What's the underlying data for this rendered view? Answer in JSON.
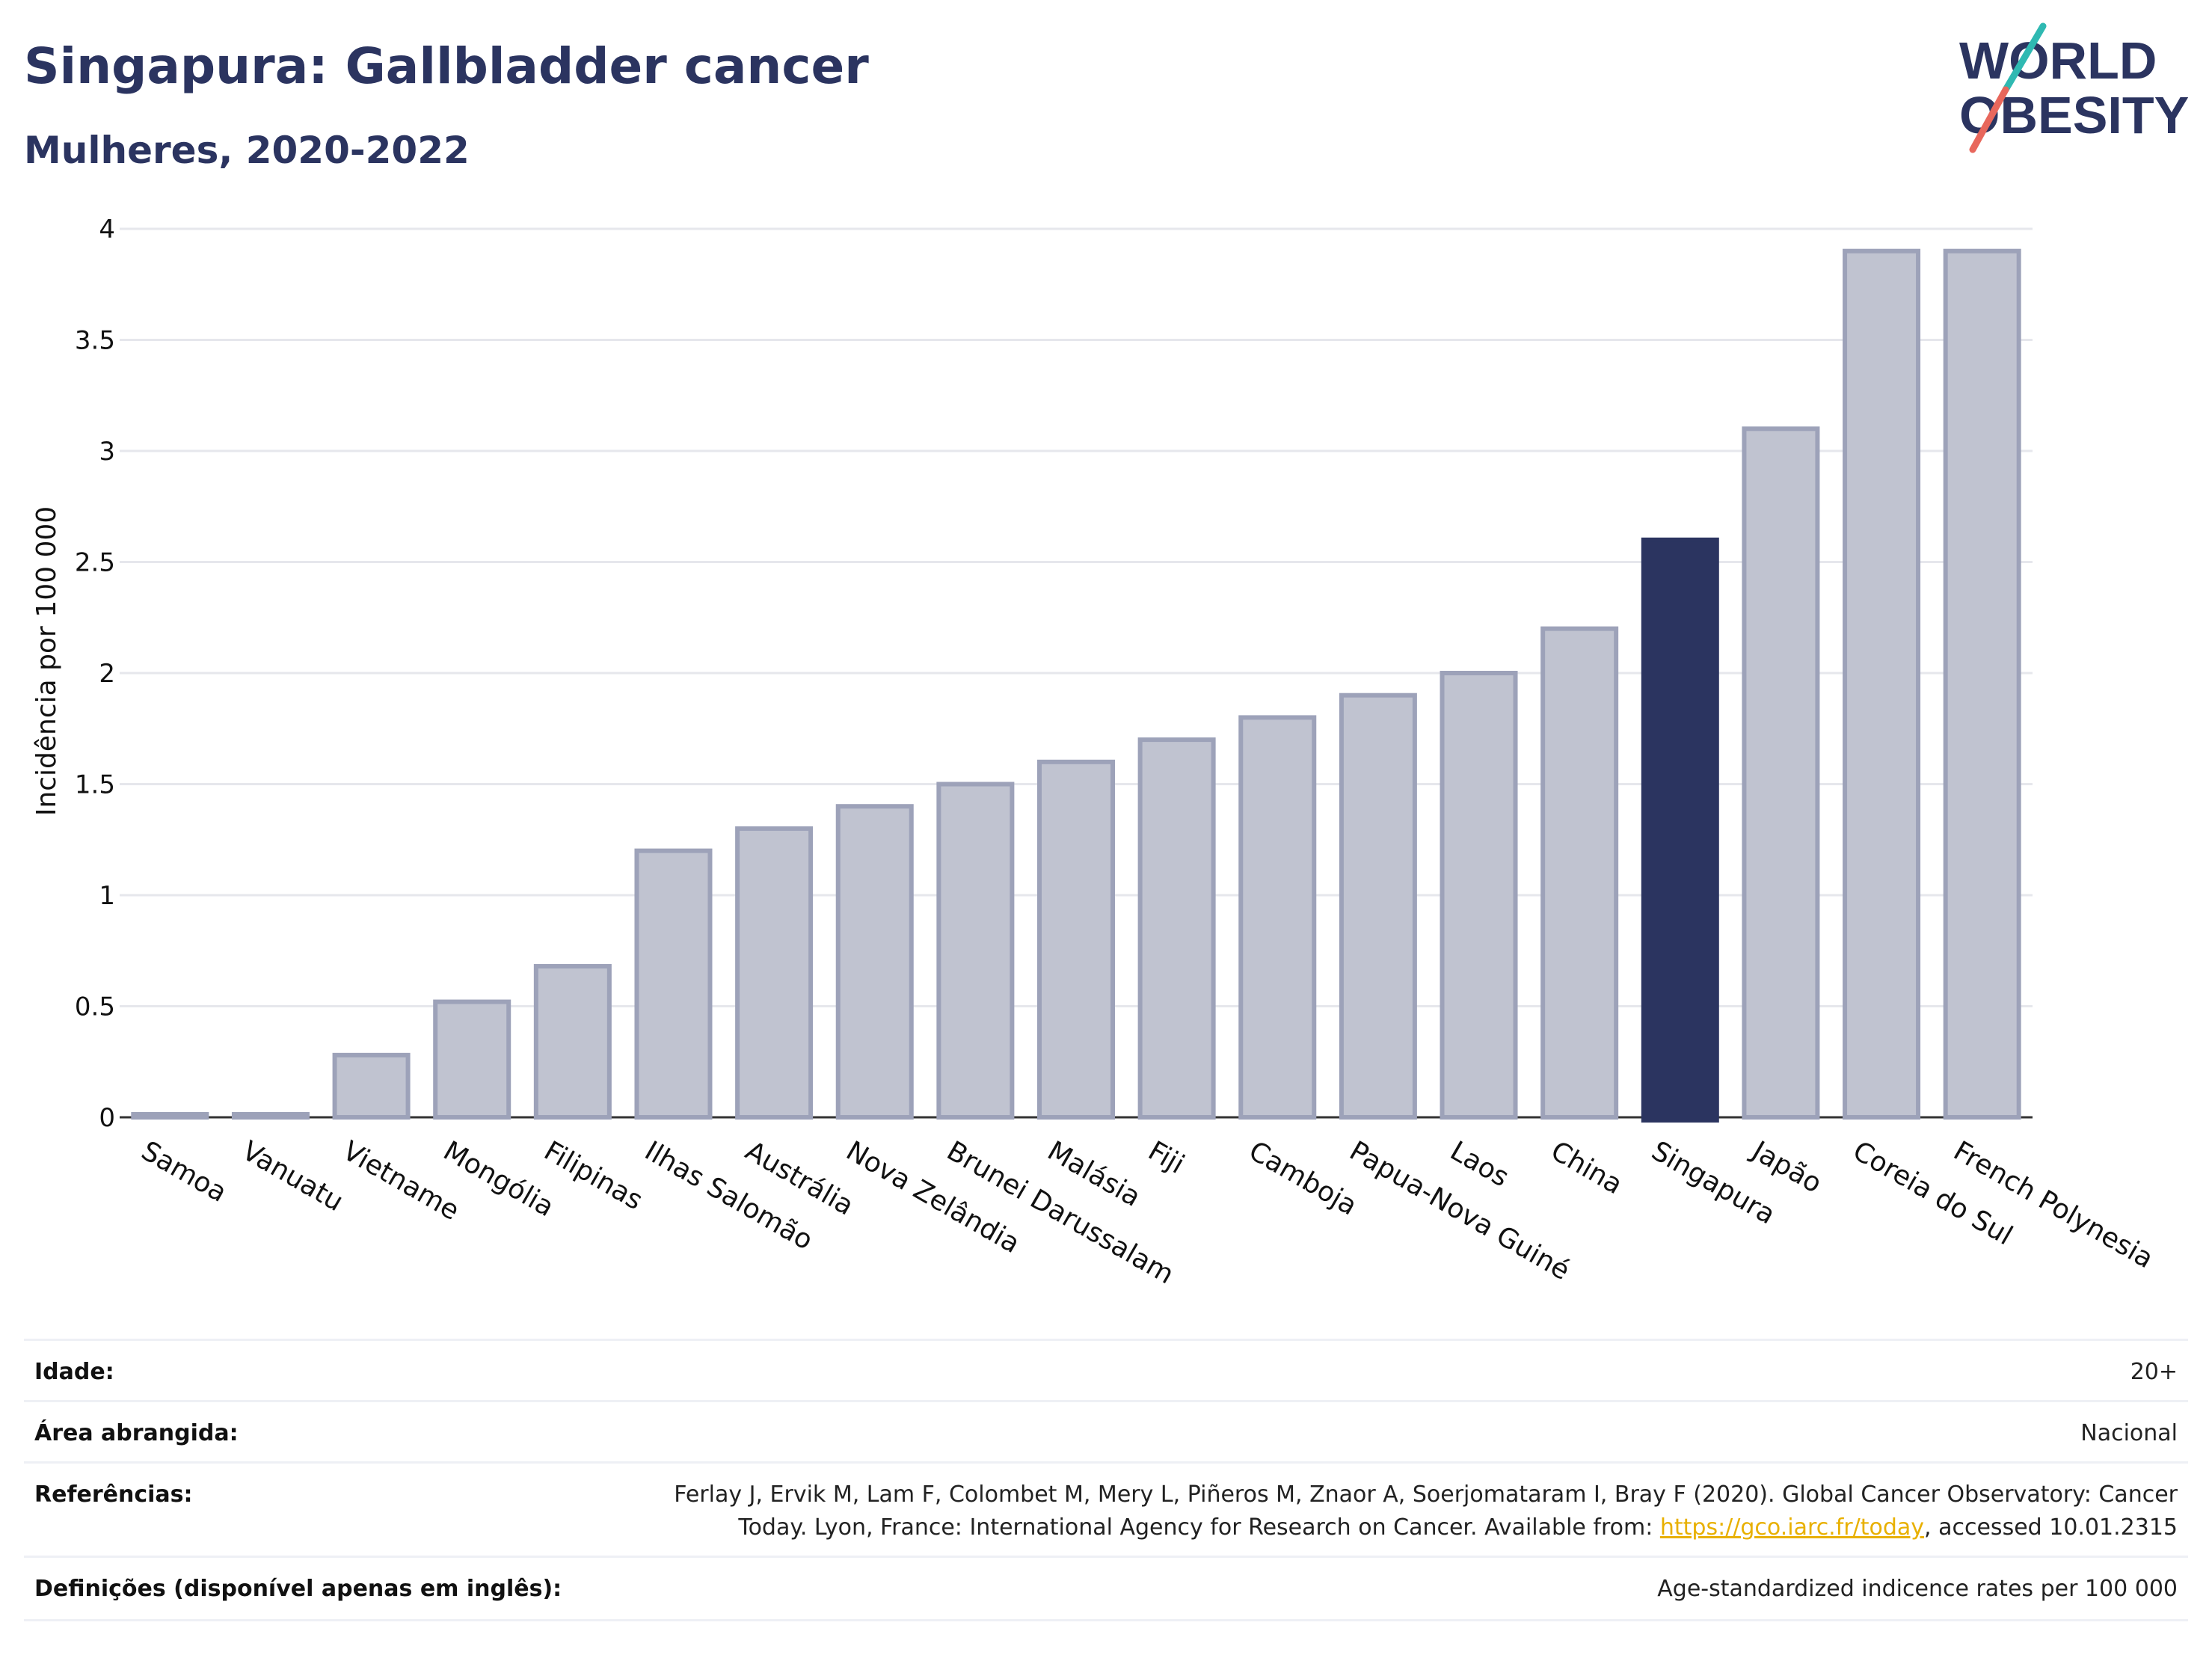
{
  "header": {
    "title": "Singapura: Gallbladder cancer",
    "subtitle": "Mulheres, 2020-2022"
  },
  "logo": {
    "line1": "WORLD",
    "line2": "OBESITY",
    "accent_colors": [
      "#2fb9b2",
      "#e8675c"
    ]
  },
  "colors": {
    "bar_default": "#c0c3d0",
    "bar_border": "#9da2b9",
    "bar_highlight": "#2b3460",
    "text": "#2b3460",
    "grid": "#e6e7ec"
  },
  "chart_data": {
    "type": "bar",
    "title": "Singapura: Gallbladder cancer",
    "subtitle": "Mulheres, 2020-2022",
    "xlabel": "",
    "ylabel": "Incidência por 100 000",
    "ylim": [
      0,
      4
    ],
    "yticks": [
      "0",
      "0.5",
      "1",
      "1.5",
      "2",
      "2.5",
      "3",
      "3.5",
      "4"
    ],
    "grid": true,
    "highlight": "Singapura",
    "categories": [
      "Samoa",
      "Vanuatu",
      "Vietname",
      "Mongólia",
      "Filipinas",
      "Ilhas Salomão",
      "Austrália",
      "Nova Zelândia",
      "Brunei Darussalam",
      "Malásia",
      "Fiji",
      "Camboja",
      "Papua-Nova Guiné",
      "Laos",
      "China",
      "Singapura",
      "Japão",
      "Coreia do Sul",
      "French Polynesia"
    ],
    "values": [
      0.01,
      0.01,
      0.28,
      0.52,
      0.68,
      1.2,
      1.3,
      1.4,
      1.5,
      1.6,
      1.7,
      1.8,
      1.9,
      2.0,
      2.2,
      2.6,
      3.1,
      3.9,
      3.9
    ]
  },
  "info": {
    "age_label": "Idade:",
    "age_value": "20+",
    "area_label": "Área abrangida:",
    "area_value": "Nacional",
    "ref_label": "Referências:",
    "ref_line1": "Ferlay J, Ervik M, Lam F, Colombet M, Mery L, Piñeros M, Znaor A, Soerjomataram I, Bray F (2020). Global Cancer Observatory: Cancer",
    "ref_line2_pre": "Today. Lyon, France: International Agency for Research on Cancer. Available from: ",
    "ref_link": "https://gco.iarc.fr/today",
    "ref_line2_post": ", accessed 10.01.2315",
    "def_label": "Definições (disponível apenas em inglês):",
    "def_value": "Age-standardized indicence rates per 100 000"
  }
}
